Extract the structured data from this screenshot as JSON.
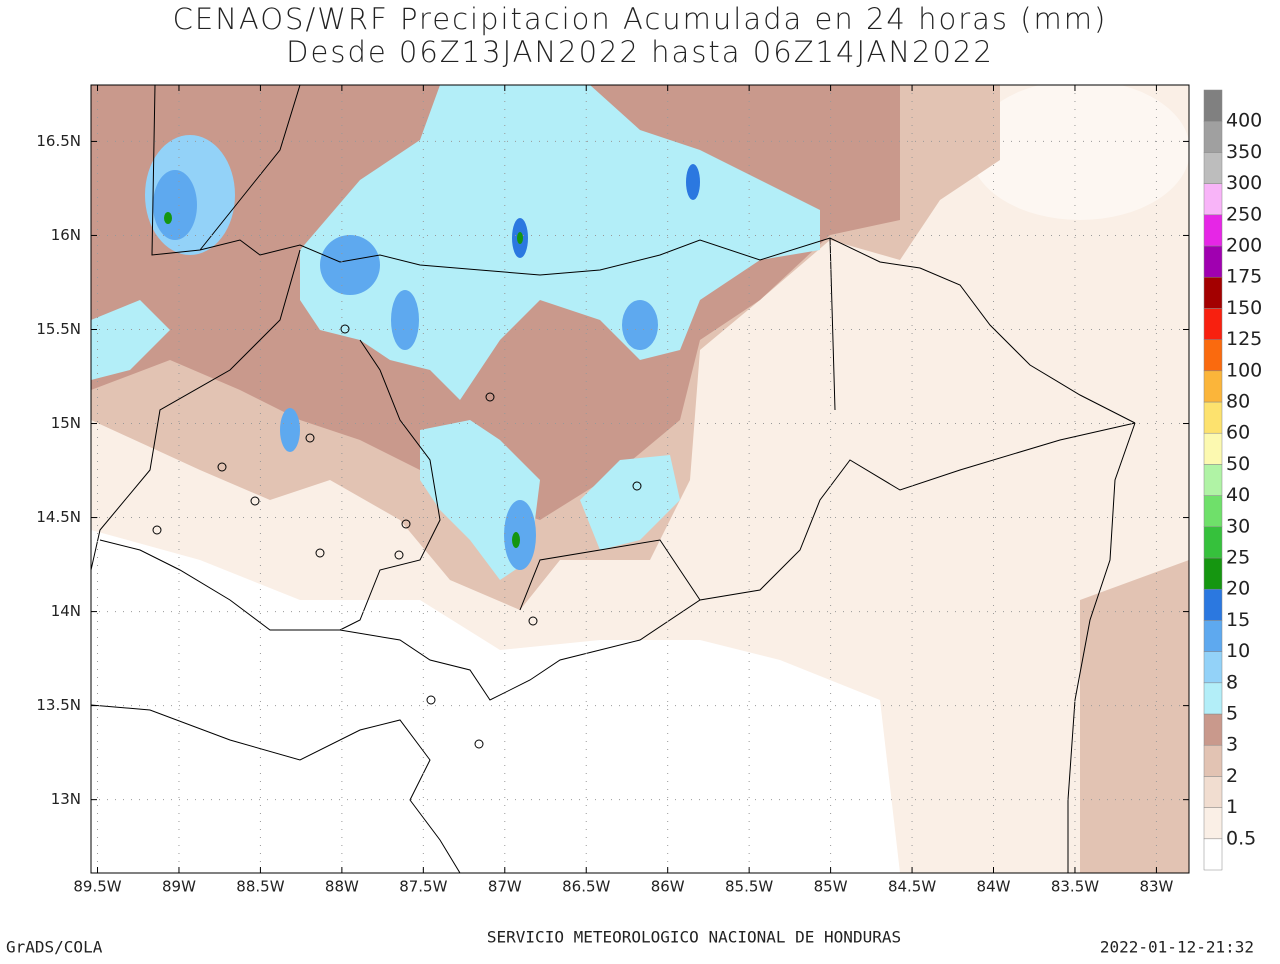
{
  "title": [
    "CENAOS/WRF Precipitacion Acumulada en 24 horas (mm)",
    "Desde 06Z13JAN2022 hasta 06Z14JAN2022"
  ],
  "map": {
    "xlim": [
      -89.54,
      -82.8
    ],
    "ylim": [
      12.61,
      16.8
    ],
    "xticks": [
      {
        "value": -89.5,
        "label": "89.5W"
      },
      {
        "value": -89,
        "label": "89W"
      },
      {
        "value": -88.5,
        "label": "88.5W"
      },
      {
        "value": -88,
        "label": "88W"
      },
      {
        "value": -87.5,
        "label": "87.5W"
      },
      {
        "value": -87,
        "label": "87W"
      },
      {
        "value": -86.5,
        "label": "86.5W"
      },
      {
        "value": -86,
        "label": "86W"
      },
      {
        "value": -85.5,
        "label": "85.5W"
      },
      {
        "value": -85,
        "label": "85W"
      },
      {
        "value": -84.5,
        "label": "84.5W"
      },
      {
        "value": -84,
        "label": "84W"
      },
      {
        "value": -83.5,
        "label": "83.5W"
      },
      {
        "value": -83,
        "label": "83W"
      }
    ],
    "yticks": [
      {
        "value": 13,
        "label": "13N"
      },
      {
        "value": 13.5,
        "label": "13.5N"
      },
      {
        "value": 14,
        "label": "14N"
      },
      {
        "value": 14.5,
        "label": "14.5N"
      },
      {
        "value": 15,
        "label": "15N"
      },
      {
        "value": 15.5,
        "label": "15.5N"
      },
      {
        "value": 16,
        "label": "16N"
      },
      {
        "value": 16.5,
        "label": "16.5N"
      }
    ]
  },
  "colorbar": {
    "levels": [
      0.5,
      1,
      2,
      3,
      5,
      8,
      10,
      15,
      20,
      25,
      30,
      40,
      50,
      60,
      80,
      100,
      125,
      150,
      175,
      200,
      250,
      300,
      350,
      400
    ],
    "colors": [
      "#ffffff",
      "#faefe6",
      "#f1ddd0",
      "#e2c3b3",
      "#c9998c",
      "#b3eef8",
      "#93d2f8",
      "#5ea9ef",
      "#2b78e0",
      "#159610",
      "#36c13c",
      "#6fe06a",
      "#b0f3a5",
      "#fcf9b0",
      "#fde26e",
      "#fbb53a",
      "#fa6a0e",
      "#f8200f",
      "#a30000",
      "#a000b0",
      "#e626e6",
      "#f8b4f8",
      "#bdbdbd",
      "#a0a0a0",
      "#808080"
    ]
  },
  "footer": {
    "left": "GrADS/COLA",
    "center": "SERVICIO METEOROLOGICO NACIONAL DE HONDURAS",
    "right": "2022-01-12-21:32"
  }
}
